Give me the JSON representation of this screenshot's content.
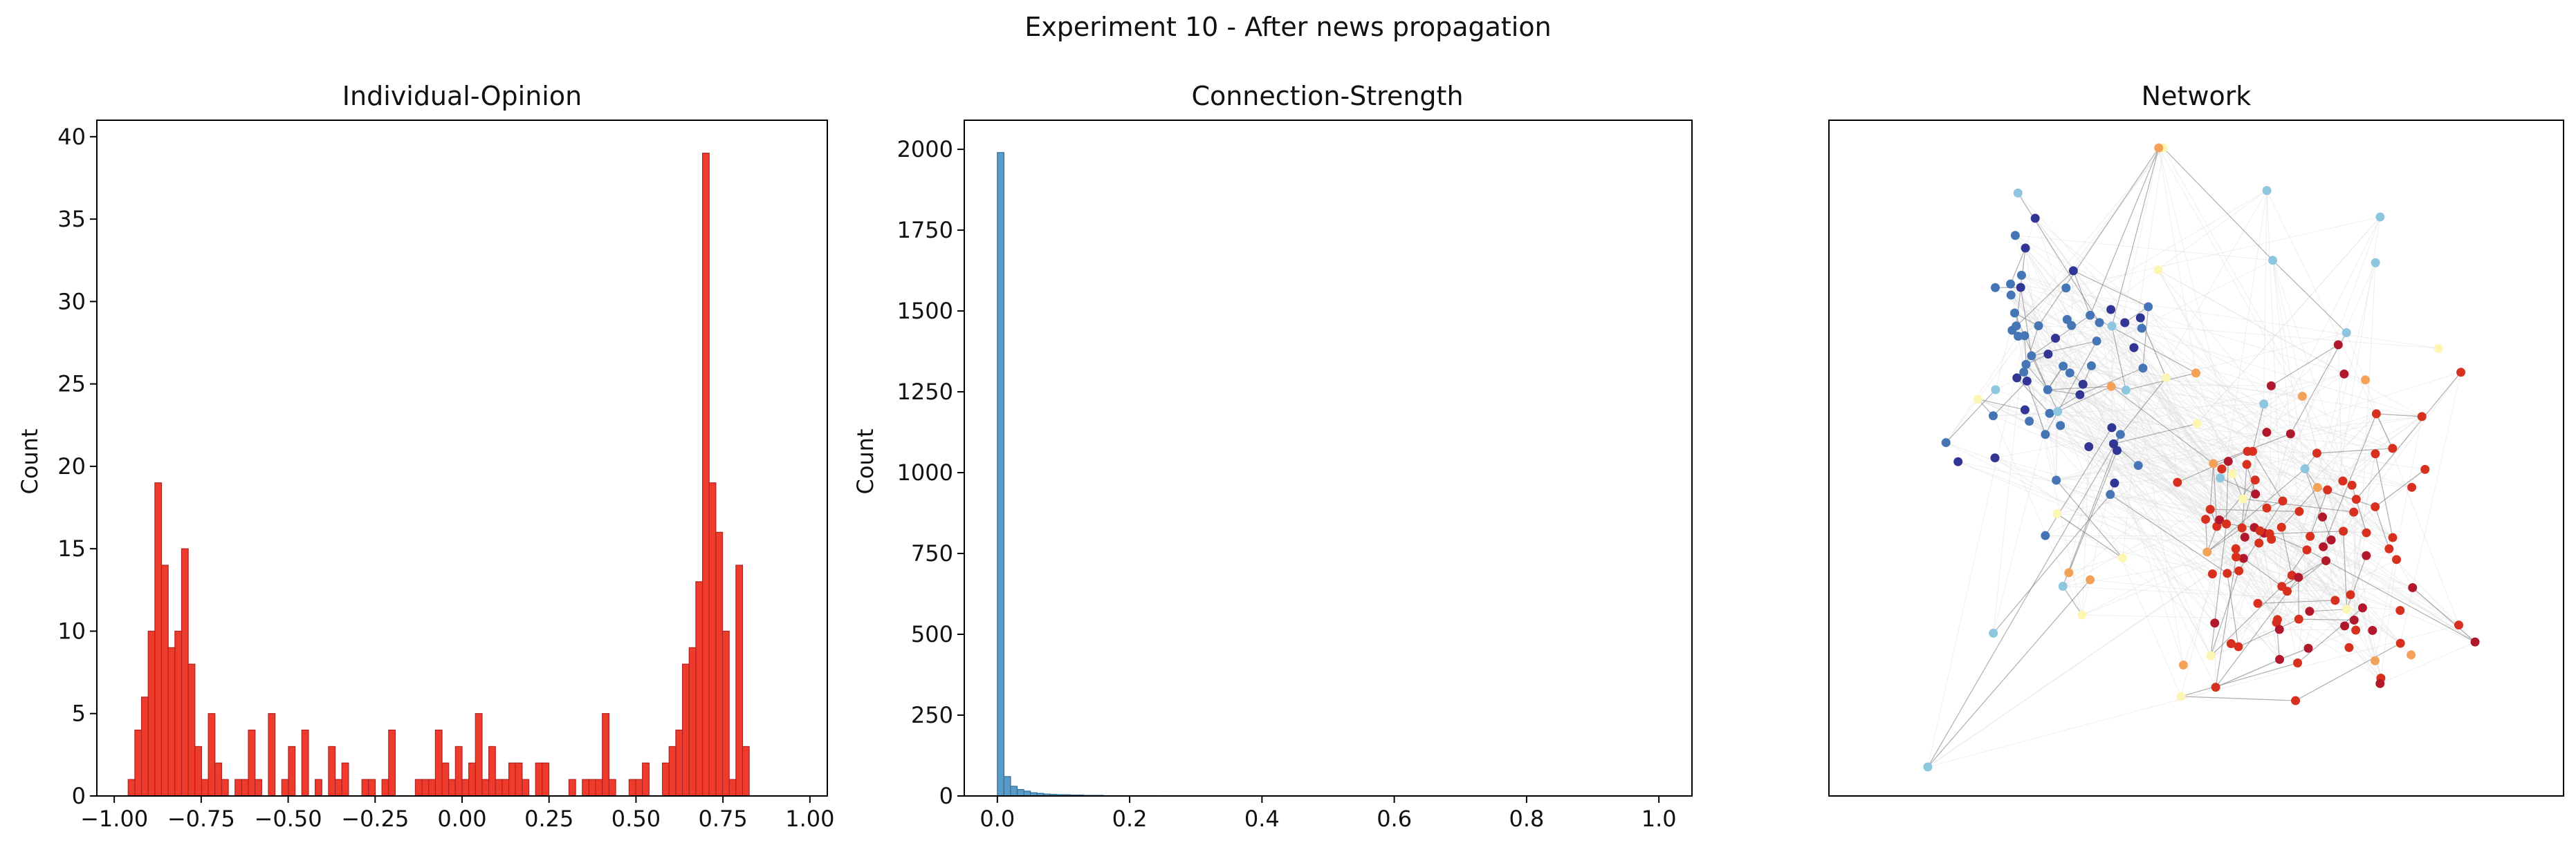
{
  "figure": {
    "suptitle": "Experiment 10 - After news propagation"
  },
  "chart_data": [
    {
      "type": "bar",
      "title": "Individual-Opinion",
      "xlabel": "",
      "ylabel": "Count",
      "xlim": [
        -1.05,
        1.05
      ],
      "ylim": [
        0,
        41
      ],
      "xticks": [
        -1.0,
        -0.75,
        -0.5,
        -0.25,
        0.0,
        0.25,
        0.5,
        0.75,
        1.0
      ],
      "xtick_labels": [
        "−1.00",
        "−0.75",
        "−0.50",
        "−0.25",
        "0.00",
        "0.25",
        "0.50",
        "0.75",
        "1.00"
      ],
      "yticks": [
        0,
        5,
        10,
        15,
        20,
        25,
        30,
        35,
        40
      ],
      "bin_start": -0.96,
      "bin_width": 0.0192,
      "values": [
        1,
        4,
        6,
        10,
        19,
        14,
        9,
        10,
        15,
        8,
        3,
        1,
        5,
        2,
        1,
        0,
        1,
        1,
        4,
        1,
        0,
        5,
        0,
        1,
        3,
        0,
        4,
        0,
        1,
        0,
        3,
        1,
        2,
        0,
        0,
        1,
        1,
        0,
        1,
        4,
        0,
        0,
        0,
        1,
        1,
        1,
        4,
        2,
        1,
        3,
        1,
        2,
        5,
        1,
        3,
        1,
        1,
        2,
        2,
        1,
        0,
        2,
        2,
        0,
        0,
        0,
        1,
        0,
        1,
        1,
        1,
        5,
        1,
        0,
        0,
        1,
        1,
        2,
        0,
        0,
        2,
        3,
        4,
        8,
        9,
        13,
        39,
        19,
        16,
        10,
        1,
        14,
        3
      ],
      "bar_color": "#ef3b2c",
      "edge_color": "#b22222",
      "grid": false
    },
    {
      "type": "bar",
      "title": "Connection-Strength",
      "xlabel": "",
      "ylabel": "Count",
      "xlim": [
        -0.05,
        1.05
      ],
      "ylim": [
        0,
        2090
      ],
      "xticks": [
        0.0,
        0.2,
        0.4,
        0.6,
        0.8,
        1.0
      ],
      "xtick_labels": [
        "0.0",
        "0.2",
        "0.4",
        "0.6",
        "0.8",
        "1.0"
      ],
      "yticks": [
        0,
        250,
        500,
        750,
        1000,
        1250,
        1500,
        1750,
        2000
      ],
      "bin_start": 0.0,
      "bin_width": 0.01,
      "values": [
        1990,
        60,
        30,
        20,
        15,
        10,
        8,
        6,
        5,
        4,
        4,
        3,
        3,
        2,
        2,
        2,
        1,
        1,
        1,
        1,
        1,
        1,
        1,
        1,
        1
      ],
      "bar_color": "#5b9bc8",
      "edge_color": "#2e6f9e",
      "grid": false
    },
    {
      "type": "scatter",
      "title": "Network",
      "axes_visible": false,
      "edge_color": "#bdbdbd",
      "background_edge_color": "#e0e0e0",
      "colors": {
        "dark_red": "#b2182b",
        "red": "#d7301f",
        "orange": "#f4a259",
        "pale_yellow": "#fdf6b2",
        "light_blue": "#8ec6e0",
        "mid_blue": "#4575b4",
        "dark_blue": "#313695"
      },
      "layout_seed": 7
    }
  ]
}
